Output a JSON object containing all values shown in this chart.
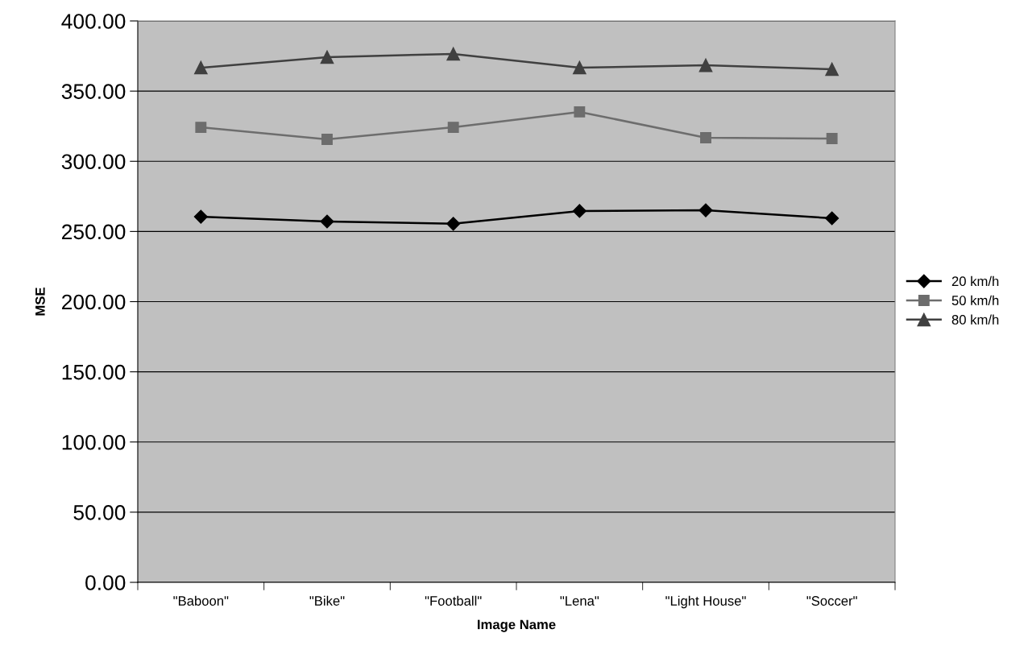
{
  "chart_data": {
    "type": "line",
    "xlabel": "Image Name",
    "ylabel": "MSE",
    "categories": [
      "\"Baboon\"",
      "\"Bike\"",
      "\"Football\"",
      "\"Lena\"",
      "\"Light House\"",
      "\"Soccer\""
    ],
    "series": [
      {
        "name": "20 km/h",
        "color": "#000000",
        "marker": "diamond",
        "values": [
          260.5,
          257.1,
          255.5,
          264.6,
          265.1,
          259.4
        ]
      },
      {
        "name": "50 km/h",
        "color": "#6d6d6d",
        "marker": "square",
        "values": [
          324.2,
          315.6,
          324.2,
          335.2,
          316.8,
          316.2
        ]
      },
      {
        "name": "80 km/h",
        "color": "#404040",
        "marker": "triangle",
        "values": [
          366.7,
          374.2,
          376.5,
          366.7,
          368.4,
          365.6
        ]
      }
    ],
    "ylim": [
      0,
      400
    ],
    "yticks": [
      {
        "value": 0,
        "label": "0.00"
      },
      {
        "value": 50,
        "label": "50.00"
      },
      {
        "value": 100,
        "label": "100.00"
      },
      {
        "value": 150,
        "label": "150.00"
      },
      {
        "value": 200,
        "label": "200.00"
      },
      {
        "value": 250,
        "label": "250.00"
      },
      {
        "value": 300,
        "label": "300.00"
      },
      {
        "value": 350,
        "label": "350.00"
      },
      {
        "value": 400,
        "label": "400.00"
      }
    ],
    "grid": "y",
    "legend": "right",
    "line_style": "solid"
  }
}
